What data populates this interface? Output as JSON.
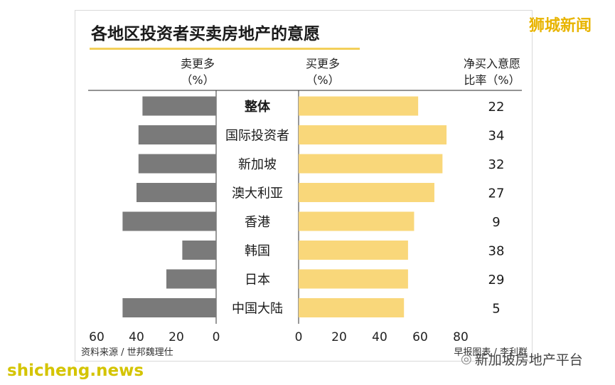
{
  "chart_data": {
    "type": "bar",
    "title": "各地区投资者买卖房地产的意愿",
    "left_header": [
      "卖更多",
      "（%）"
    ],
    "right_header": [
      "买更多",
      "（%）"
    ],
    "ratio_header": [
      "净买入意愿",
      "比率（%）"
    ],
    "categories": [
      "整体",
      "国际投资者",
      "新加坡",
      "澳大利亚",
      "香港",
      "韩国",
      "日本",
      "中国大陆"
    ],
    "series": [
      {
        "name": "卖更多",
        "values": [
          37,
          39,
          39,
          40,
          47,
          17,
          25,
          47
        ]
      },
      {
        "name": "买更多",
        "values": [
          59,
          73,
          71,
          67,
          57,
          54,
          54,
          52
        ]
      }
    ],
    "net_ratio": [
      "22",
      "34",
      "32",
      "27",
      "9",
      "38",
      "29",
      "5"
    ],
    "left_ticks": [
      "60",
      "40",
      "20",
      "0"
    ],
    "right_ticks": [
      "0",
      "20",
      "40",
      "60",
      "80"
    ],
    "left_xlim": [
      0,
      60
    ],
    "right_xlim": [
      0,
      80
    ],
    "colors": {
      "sell": "#7a7a7a",
      "buy": "#f9d77a",
      "title_underline": "#f3cf5a"
    },
    "source": "资料来源 / 世邦魏理仕",
    "credit": "早报图表 / 李利群"
  },
  "watermarks": {
    "top_right": "狮城新闻",
    "bottom_left": "shicheng.news",
    "bottom_right": "新加坡房地产平台"
  }
}
